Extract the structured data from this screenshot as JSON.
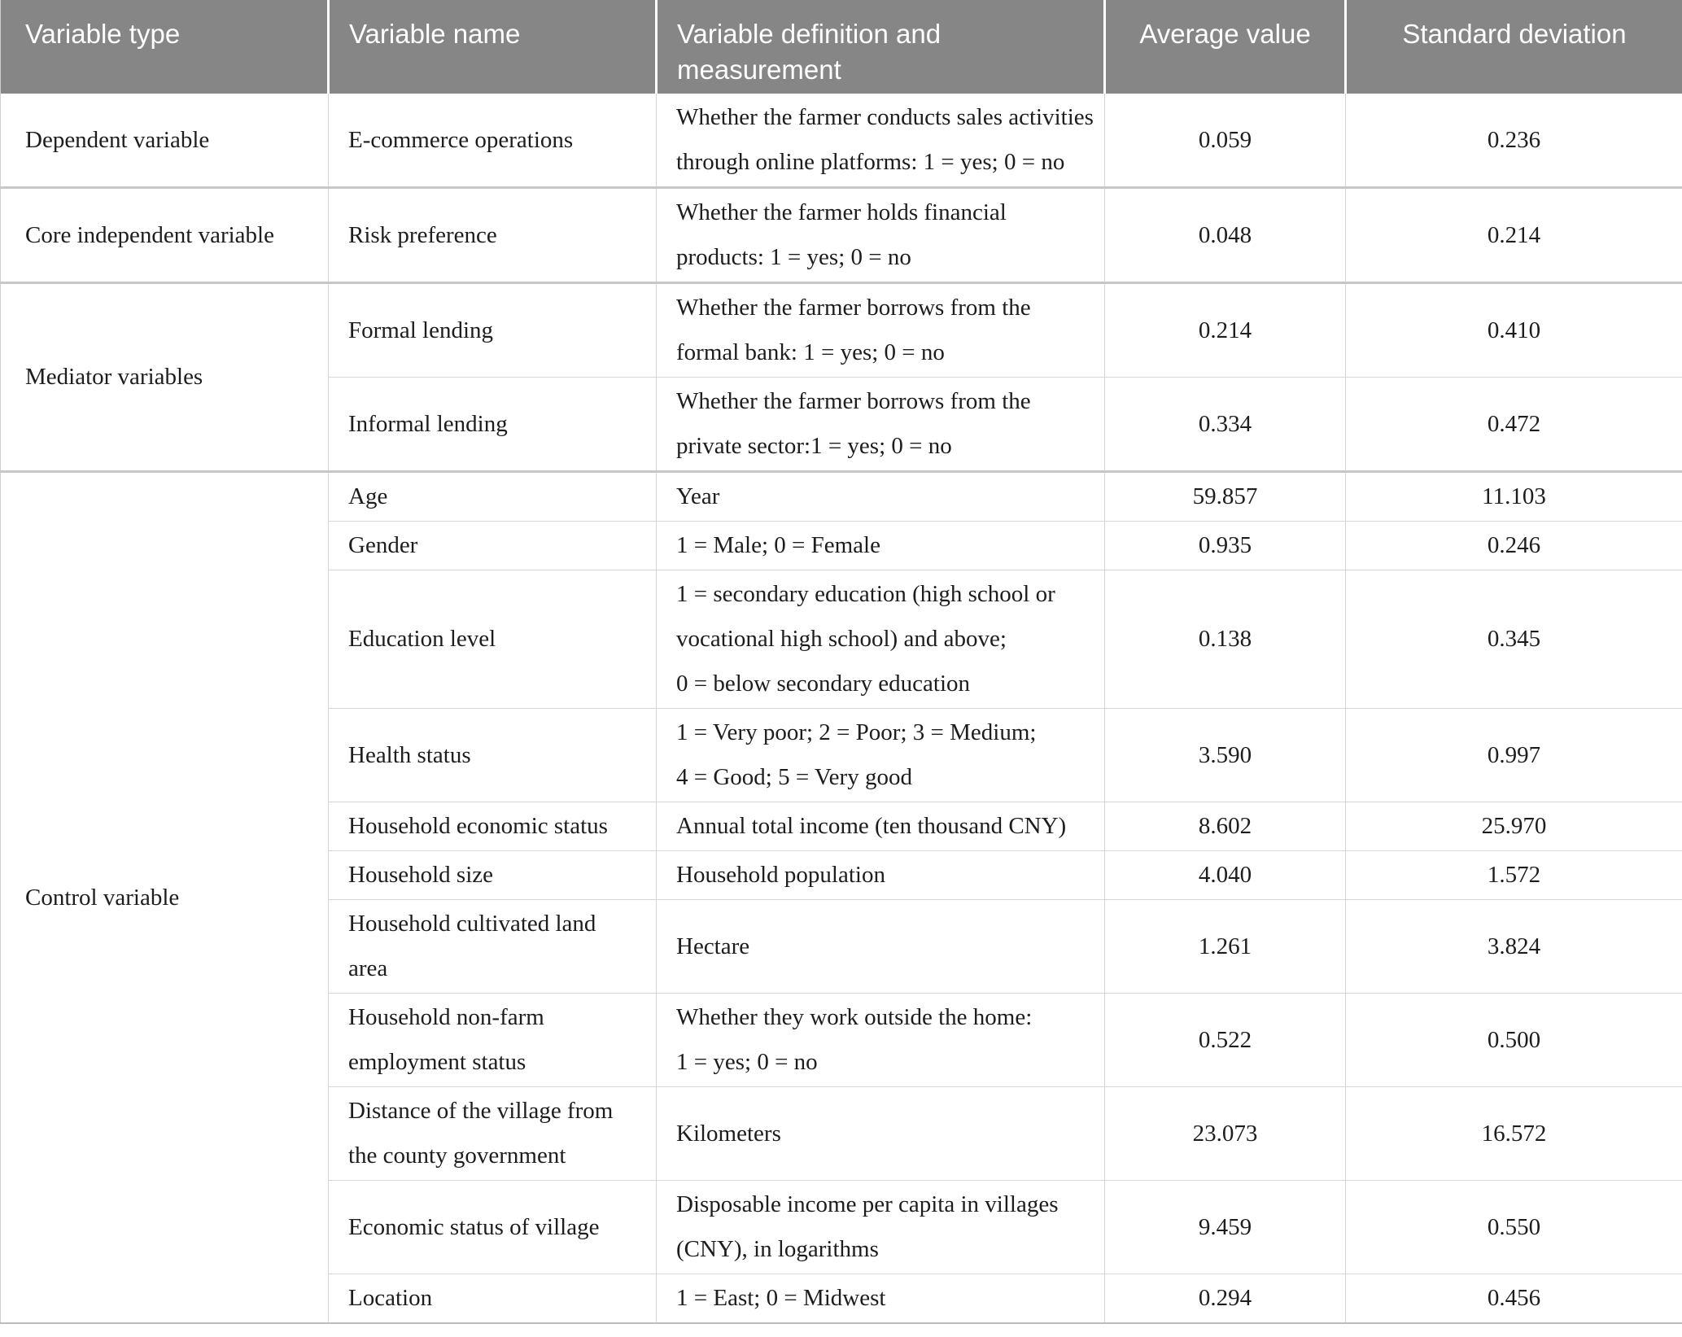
{
  "colors": {
    "header_background": "#868686",
    "header_text": "#ffffff",
    "body_text": "#1d1d1d",
    "grid_line": "#d6d6d6",
    "group_divider": "#c7c7c7"
  },
  "table": {
    "headers": {
      "variable_type": "Variable type",
      "variable_name": "Variable name",
      "definition": "Variable definition and measurement",
      "average_value": "Average value",
      "standard_deviation": "Standard deviation"
    },
    "groups": [
      {
        "type": "Dependent variable",
        "rows": [
          {
            "name": [
              "E-commerce operations"
            ],
            "definition": [
              "Whether the farmer conducts sales activities",
              "through online platforms: 1 = yes; 0 = no"
            ],
            "avg": "0.059",
            "sd": "0.236"
          }
        ]
      },
      {
        "type": "Core independent variable",
        "rows": [
          {
            "name": [
              "Risk preference"
            ],
            "definition": [
              "Whether the farmer holds financial",
              "products: 1 = yes; 0 = no"
            ],
            "avg": "0.048",
            "sd": "0.214"
          }
        ]
      },
      {
        "type": "Mediator variables",
        "rows": [
          {
            "name": [
              "Formal lending"
            ],
            "definition": [
              "Whether the farmer borrows from the",
              "formal bank: 1 = yes; 0 = no"
            ],
            "avg": "0.214",
            "sd": "0.410"
          },
          {
            "name": [
              "Informal lending"
            ],
            "definition": [
              "Whether the farmer borrows from the",
              "private sector:1 = yes; 0 = no"
            ],
            "avg": "0.334",
            "sd": "0.472"
          }
        ]
      },
      {
        "type": "Control variable",
        "rows": [
          {
            "name": [
              "Age"
            ],
            "definition": [
              "Year"
            ],
            "avg": "59.857",
            "sd": "11.103"
          },
          {
            "name": [
              "Gender"
            ],
            "definition": [
              "1 = Male; 0 = Female"
            ],
            "avg": "0.935",
            "sd": "0.246"
          },
          {
            "name": [
              "Education level"
            ],
            "definition": [
              "1 = secondary education (high school or",
              "vocational high school) and above;",
              "0 = below secondary education"
            ],
            "avg": "0.138",
            "sd": "0.345"
          },
          {
            "name": [
              "Health status"
            ],
            "definition": [
              "1 = Very poor; 2 = Poor; 3 = Medium;",
              "4 = Good; 5 = Very good"
            ],
            "avg": "3.590",
            "sd": "0.997"
          },
          {
            "name": [
              "Household economic status"
            ],
            "definition": [
              "Annual total income (ten thousand CNY)"
            ],
            "avg": "8.602",
            "sd": "25.970"
          },
          {
            "name": [
              "Household size"
            ],
            "definition": [
              "Household population"
            ],
            "avg": "4.040",
            "sd": "1.572"
          },
          {
            "name": [
              "Household cultivated land",
              "area"
            ],
            "definition": [
              "Hectare"
            ],
            "avg": "1.261",
            "sd": "3.824"
          },
          {
            "name": [
              "Household non-farm",
              "employment status"
            ],
            "definition": [
              "Whether they work outside the home:",
              "1 = yes; 0 = no"
            ],
            "avg": "0.522",
            "sd": "0.500"
          },
          {
            "name": [
              "Distance of the village from",
              "the county government"
            ],
            "definition": [
              "Kilometers"
            ],
            "avg": "23.073",
            "sd": "16.572"
          },
          {
            "name": [
              "Economic status of village"
            ],
            "definition": [
              "Disposable income per capita in villages",
              "(CNY), in logarithms"
            ],
            "avg": "9.459",
            "sd": "0.550"
          },
          {
            "name": [
              "Location"
            ],
            "definition": [
              "1 = East; 0 = Midwest"
            ],
            "avg": "0.294",
            "sd": "0.456"
          }
        ]
      }
    ]
  }
}
